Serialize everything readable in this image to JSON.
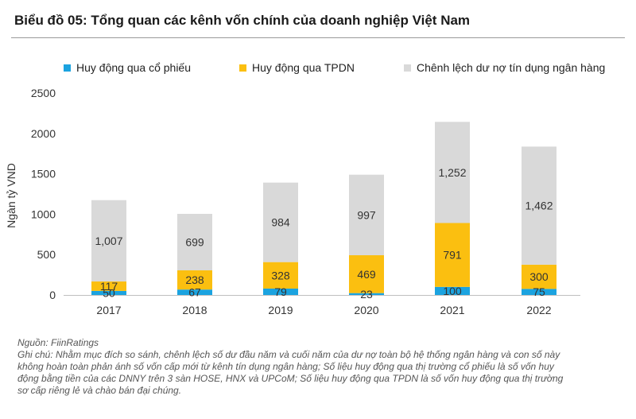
{
  "title": "Biểu đồ 05: Tổng quan các kênh vốn chính của doanh nghiệp Việt Nam",
  "chart_data": {
    "type": "bar",
    "stacked": true,
    "categories": [
      "2017",
      "2018",
      "2019",
      "2020",
      "2021",
      "2022"
    ],
    "series": [
      {
        "name": "Huy động qua cổ phiếu",
        "color": "#1ba3e0",
        "values": [
          50,
          67,
          79,
          23,
          100,
          75
        ]
      },
      {
        "name": "Huy động qua TPDN",
        "color": "#fbbf10",
        "values": [
          117,
          238,
          328,
          469,
          791,
          300
        ]
      },
      {
        "name": "Chênh lệch dư nợ tín dụng ngân hàng",
        "color": "#d9d9d9",
        "values": [
          1007,
          699,
          984,
          997,
          1252,
          1462
        ]
      }
    ],
    "data_labels": [
      [
        "50",
        "67",
        "79",
        "23",
        "100",
        "75"
      ],
      [
        "117",
        "238",
        "328",
        "469",
        "791",
        "300"
      ],
      [
        "1,007",
        "699",
        "984",
        "997",
        "1,252",
        "1,462"
      ]
    ],
    "ylabel": "Ngàn tỷ VND",
    "xlabel": "",
    "ylim": [
      0,
      2500
    ],
    "yticks": [
      0,
      500,
      1000,
      1500,
      2000,
      2500
    ],
    "legend_position": "top"
  },
  "notes": {
    "source": "Nguồn: FiinRatings",
    "lines": [
      "Ghi chú: Nhằm mục đích so sánh, chênh lệch số dư đầu năm và cuối năm của dư nợ toàn bộ hệ thống ngân hàng và con số này",
      "không hoàn toàn phản ánh số vốn cấp mới từ kênh tín dụng ngân hàng; Số liệu huy động qua thị trường cổ phiếu là số vốn huy",
      "động bằng tiền của các DNNY trên 3 sàn HOSE, HNX và UPCoM; Số liệu huy động qua TPDN là số vốn huy động qua thị trường",
      "sơ cấp riêng lẻ và chào bán đại chúng."
    ]
  }
}
